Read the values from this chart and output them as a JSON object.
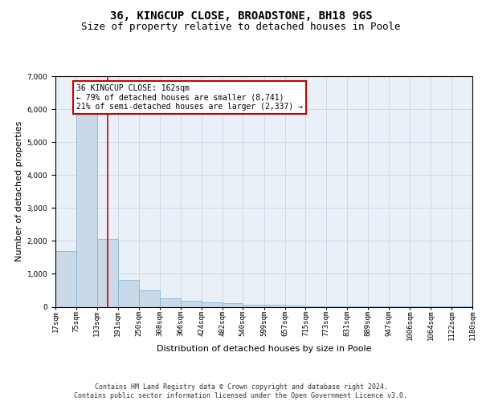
{
  "title": "36, KINGCUP CLOSE, BROADSTONE, BH18 9GS",
  "subtitle": "Size of property relative to detached houses in Poole",
  "xlabel": "Distribution of detached houses by size in Poole",
  "ylabel": "Number of detached properties",
  "bin_edges": [
    17,
    75,
    133,
    191,
    250,
    308,
    366,
    424,
    482,
    540,
    599,
    657,
    715,
    773,
    831,
    889,
    947,
    1006,
    1064,
    1122,
    1180
  ],
  "bar_heights": [
    1700,
    5850,
    2050,
    820,
    490,
    260,
    190,
    130,
    100,
    70,
    50,
    30,
    20,
    10,
    5,
    3,
    2,
    1,
    1,
    1
  ],
  "bar_color": "#c9d9e8",
  "bar_edge_color": "#7bafd4",
  "property_size": 162,
  "annotation_text": "36 KINGCUP CLOSE: 162sqm\n← 79% of detached houses are smaller (8,741)\n21% of semi-detached houses are larger (2,337) →",
  "annotation_box_color": "#ffffff",
  "annotation_border_color": "#cc0000",
  "vline_color": "#cc0000",
  "ylim": [
    0,
    7000
  ],
  "yticks": [
    0,
    1000,
    2000,
    3000,
    4000,
    5000,
    6000,
    7000
  ],
  "grid_color": "#d0d8e8",
  "bg_color": "#eaf0f8",
  "footer_line1": "Contains HM Land Registry data © Crown copyright and database right 2024.",
  "footer_line2": "Contains public sector information licensed under the Open Government Licence v3.0.",
  "title_fontsize": 10,
  "subtitle_fontsize": 9,
  "annotation_fontsize": 7,
  "axis_label_fontsize": 8,
  "tick_fontsize": 6.5,
  "footer_fontsize": 6
}
